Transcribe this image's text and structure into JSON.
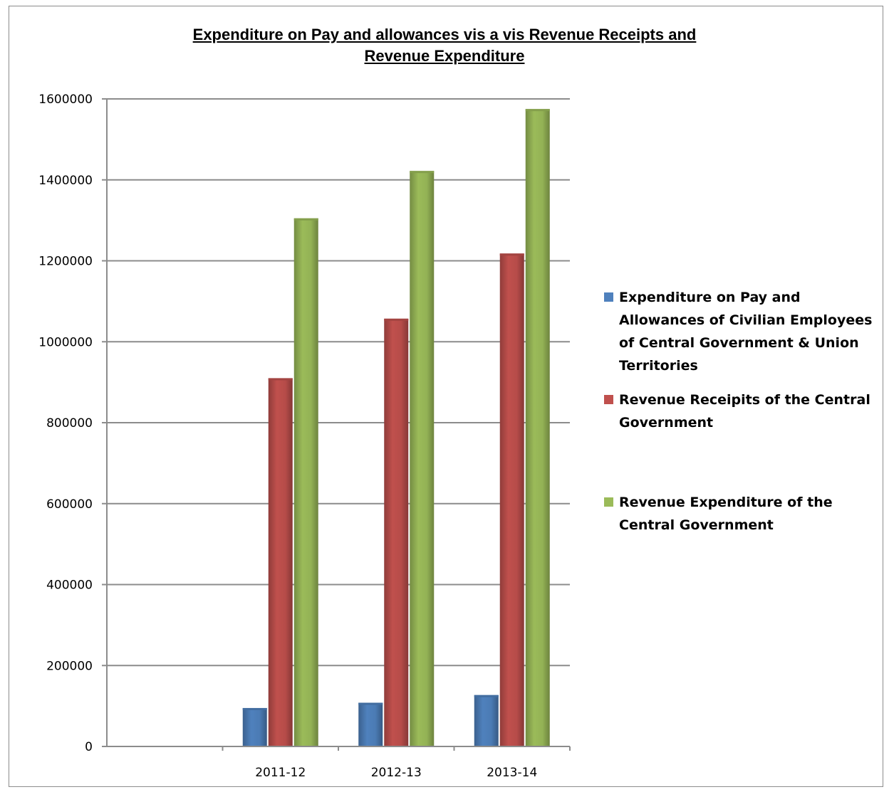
{
  "chart_data": {
    "type": "bar",
    "title": "Expenditure on Pay and allowances vis a vis Revenue Receipts and Revenue Expenditure",
    "title_lines": [
      "Expenditure on Pay and allowances vis a vis Revenue Receipts  and",
      "Revenue Expenditure"
    ],
    "categories": [
      "",
      "2011-12",
      "2012-13",
      "2013-14"
    ],
    "ylim": [
      0,
      1600000
    ],
    "yticks": [
      "0",
      "200000",
      "400000",
      "600000",
      "800000",
      "1000000",
      "1200000",
      "1400000",
      "1600000"
    ],
    "grid": true,
    "legend_position": "right",
    "series": [
      {
        "name": "Expenditure on Pay and Allowances of Civilian Employees of Central Government & Union Territories",
        "color": "#4f81bd",
        "values": [
          null,
          95000,
          108000,
          127000
        ]
      },
      {
        "name": "Revenue Receipits of the Central Government",
        "color": "#c0504d",
        "values": [
          null,
          910000,
          1057000,
          1218000
        ]
      },
      {
        "name": "Revenue Expenditure of the Central Government",
        "color": "#9bbb59",
        "values": [
          null,
          1305000,
          1422000,
          1575000
        ]
      }
    ]
  }
}
